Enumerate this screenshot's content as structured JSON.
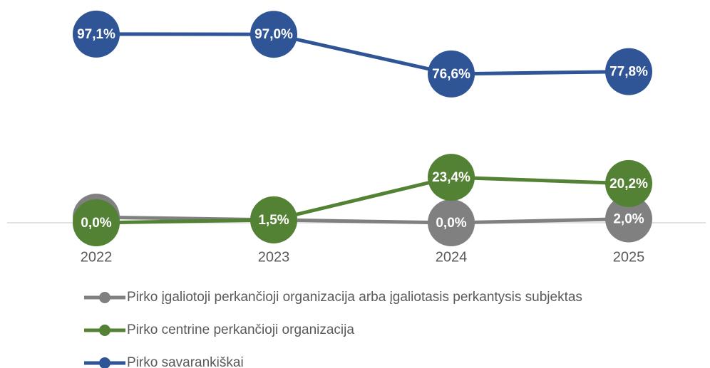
{
  "chart_data": {
    "type": "line",
    "categories": [
      "2022",
      "2023",
      "2024",
      "2025"
    ],
    "ylim": [
      0,
      100
    ],
    "series": [
      {
        "name": "Pirko įgaliotoji perkančioji organizacija arba įgaliotasis perkantysis subjektas",
        "color": "#808080",
        "values": [
          2.9,
          1.5,
          0.0,
          2.0
        ],
        "value_labels": [
          "2,9%",
          "1,5%",
          "0,0%",
          "2,0%"
        ]
      },
      {
        "name": "Pirko centrine perkančioji organizacija",
        "color": "#548235",
        "values": [
          0.0,
          1.5,
          23.4,
          20.2
        ],
        "value_labels": [
          "0,0%",
          "1,5%",
          "23,4%",
          "20,2%"
        ]
      },
      {
        "name": "Pirko savarankiškai",
        "color": "#2f5597",
        "values": [
          97.1,
          97.0,
          76.6,
          77.8
        ],
        "value_labels": [
          "97,1%",
          "97,0%",
          "76,6%",
          "77,8%"
        ]
      }
    ]
  }
}
